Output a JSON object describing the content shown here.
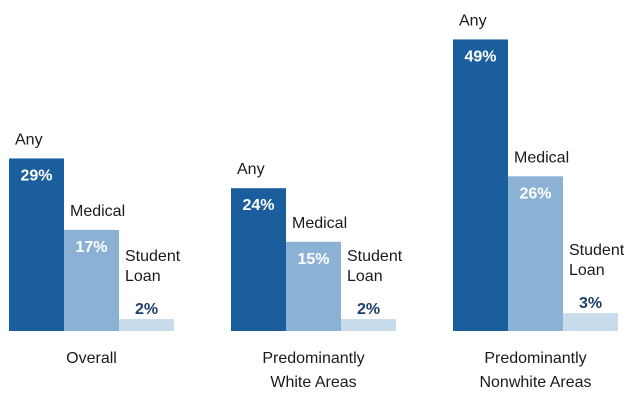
{
  "chart_data": {
    "type": "bar",
    "title": "",
    "xlabel": "",
    "ylabel": "",
    "ylim": [
      0,
      50
    ],
    "grid": false,
    "legend": "none",
    "unit": "%",
    "categories": [
      "Overall",
      "Predominantly White Areas",
      "Predominantly Nonwhite Areas"
    ],
    "category_lines": [
      [
        "Overall"
      ],
      [
        "Predominantly",
        "White Areas"
      ],
      [
        "Predominantly",
        "Nonwhite Areas"
      ]
    ],
    "series": [
      {
        "name": "Any",
        "label_lines": [
          "Any"
        ],
        "values": [
          29,
          24,
          49
        ],
        "color": "#1a5e9e",
        "value_color": "#ffffff"
      },
      {
        "name": "Medical",
        "label_lines": [
          "Medical"
        ],
        "values": [
          17,
          15,
          26
        ],
        "color": "#8bb2d4",
        "value_color": "#ffffff"
      },
      {
        "name": "Student Loan",
        "label_lines": [
          "Student",
          "Loan"
        ],
        "values": [
          2,
          2,
          3
        ],
        "color": "#c7dbeb",
        "value_color": "#1d3f6e"
      }
    ],
    "value_labels": [
      [
        "29%",
        "24%",
        "49%"
      ],
      [
        "17%",
        "15%",
        "26%"
      ],
      [
        "2%",
        "2%",
        "3%"
      ]
    ]
  }
}
